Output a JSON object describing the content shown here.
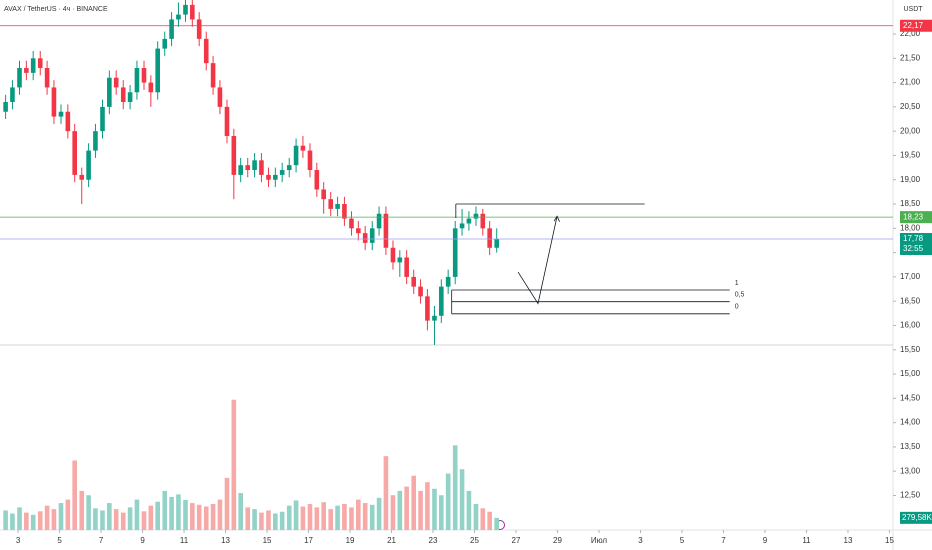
{
  "chart_data": {
    "type": "candlestick",
    "title": "AVAX / TetherUS · 4ч · BINANCE",
    "currency": "USDT",
    "up_color": "#089981",
    "down_color": "#f23645",
    "volume_up_color": "#92d2c7",
    "volume_down_color": "#f7a9a7",
    "x": [
      2.4,
      2.73,
      3.07,
      3.4,
      3.73,
      4.07,
      4.4,
      4.73,
      5.07,
      5.4,
      5.73,
      6.07,
      6.4,
      6.73,
      7.07,
      7.4,
      7.73,
      8.07,
      8.4,
      8.73,
      9.07,
      9.4,
      9.73,
      10.07,
      10.4,
      10.73,
      11.07,
      11.4,
      11.73,
      12.07,
      12.4,
      12.73,
      13.07,
      13.4,
      13.73,
      14.07,
      14.4,
      14.73,
      15.07,
      15.4,
      15.73,
      16.07,
      16.4,
      16.73,
      17.07,
      17.4,
      17.73,
      18.07,
      18.4,
      18.73,
      19.07,
      19.4,
      19.73,
      20.07,
      20.4,
      20.73,
      21.07,
      21.4,
      21.73,
      22.07,
      22.4,
      22.73,
      23.07,
      23.4,
      23.73,
      24.07,
      24.4,
      24.73,
      25.07,
      25.4,
      25.73,
      26.07
    ],
    "open": [
      20.4,
      20.6,
      20.9,
      21.3,
      21.2,
      21.5,
      21.3,
      20.9,
      20.3,
      20.4,
      20.0,
      19.1,
      19.0,
      19.6,
      20.0,
      20.5,
      21.1,
      20.9,
      20.6,
      20.8,
      21.3,
      21.0,
      20.8,
      21.7,
      21.9,
      22.3,
      22.4,
      22.6,
      22.3,
      21.9,
      21.4,
      20.9,
      20.5,
      19.9,
      19.1,
      19.3,
      19.2,
      19.4,
      19.1,
      19.0,
      19.1,
      19.2,
      19.3,
      19.7,
      19.6,
      19.2,
      18.8,
      18.6,
      18.4,
      18.5,
      18.2,
      18.0,
      17.9,
      17.7,
      18.0,
      18.3,
      17.6,
      17.3,
      17.4,
      17.0,
      16.8,
      16.6,
      16.1,
      16.2,
      16.8,
      17.0,
      18.0,
      18.1,
      18.2,
      18.3,
      18.0,
      17.6
    ],
    "high": [
      20.75,
      21.05,
      21.45,
      21.45,
      21.65,
      21.65,
      21.45,
      21.05,
      20.55,
      20.55,
      20.15,
      19.25,
      19.75,
      20.15,
      20.65,
      21.25,
      21.25,
      21.05,
      20.95,
      21.45,
      21.45,
      21.15,
      21.85,
      22.05,
      22.45,
      22.65,
      22.7,
      22.7,
      22.45,
      22.05,
      21.55,
      21.05,
      20.65,
      20.05,
      19.45,
      19.45,
      19.55,
      19.55,
      19.25,
      19.25,
      19.35,
      19.45,
      19.85,
      19.9,
      19.75,
      19.35,
      18.95,
      18.75,
      18.65,
      18.65,
      18.35,
      18.15,
      18.05,
      18.15,
      18.45,
      18.45,
      17.75,
      17.55,
      17.55,
      17.15,
      16.95,
      16.75,
      16.4,
      16.95,
      17.15,
      18.15,
      18.4,
      18.35,
      18.45,
      18.4,
      18.15,
      18.0
    ],
    "low": [
      20.25,
      20.45,
      20.75,
      21.05,
      21.05,
      21.15,
      20.75,
      20.15,
      20.15,
      19.85,
      18.95,
      18.5,
      18.85,
      19.45,
      19.85,
      20.35,
      20.75,
      20.45,
      20.45,
      20.65,
      20.85,
      20.5,
      20.65,
      21.55,
      21.75,
      22.15,
      22.25,
      22.15,
      21.75,
      21.25,
      20.75,
      20.35,
      19.75,
      18.6,
      18.95,
      19.05,
      19.05,
      18.95,
      18.85,
      18.85,
      18.95,
      19.05,
      19.15,
      19.45,
      19.05,
      18.65,
      18.3,
      18.25,
      18.25,
      18.05,
      17.85,
      17.75,
      17.55,
      17.55,
      17.85,
      17.45,
      17.15,
      17.0,
      16.85,
      16.65,
      16.45,
      15.9,
      15.6,
      16.05,
      16.65,
      16.85,
      17.85,
      17.95,
      18.05,
      17.85,
      17.45,
      17.5
    ],
    "close": [
      20.6,
      20.9,
      21.3,
      21.2,
      21.5,
      21.3,
      20.9,
      20.3,
      20.4,
      20.0,
      19.1,
      19.0,
      19.6,
      20.0,
      20.5,
      21.1,
      20.9,
      20.6,
      20.8,
      21.3,
      21.0,
      20.8,
      21.7,
      21.9,
      22.3,
      22.4,
      22.6,
      22.3,
      21.9,
      21.4,
      20.9,
      20.5,
      19.9,
      19.1,
      19.3,
      19.2,
      19.4,
      19.1,
      19.0,
      19.1,
      19.2,
      19.3,
      19.7,
      19.6,
      19.2,
      18.8,
      18.6,
      18.4,
      18.5,
      18.2,
      18.0,
      17.9,
      17.7,
      18.0,
      18.3,
      17.6,
      17.3,
      17.4,
      17.0,
      16.8,
      16.6,
      16.1,
      16.2,
      16.8,
      17.0,
      18.0,
      18.1,
      18.2,
      18.3,
      18.0,
      17.6,
      17.78
    ],
    "volume": [
      450,
      380,
      520,
      400,
      350,
      430,
      560,
      480,
      620,
      700,
      1600,
      900,
      800,
      500,
      450,
      620,
      480,
      400,
      520,
      700,
      430,
      560,
      650,
      900,
      760,
      820,
      690,
      620,
      580,
      540,
      600,
      700,
      1200,
      3000,
      850,
      520,
      480,
      400,
      450,
      380,
      420,
      560,
      680,
      540,
      600,
      520,
      640,
      480,
      560,
      600,
      520,
      700,
      620,
      580,
      740,
      1700,
      800,
      900,
      1000,
      1250,
      900,
      1100,
      950,
      800,
      1300,
      1950,
      1400,
      900,
      600,
      500,
      420,
      279.58
    ],
    "volume_last_label": "279,58K",
    "volume_ylim": [
      0,
      12200
    ],
    "xlim": [
      2.13,
      45.17
    ],
    "xticks": [
      3,
      5,
      7,
      9,
      11,
      13,
      15,
      17,
      19,
      21,
      23,
      25,
      27,
      29,
      {
        "value": 31,
        "label": "Июл"
      },
      {
        "value": 33,
        "label": "3"
      },
      {
        "value": 35,
        "label": "5"
      },
      {
        "value": 37,
        "label": "7"
      },
      {
        "value": 39,
        "label": "9"
      },
      {
        "value": 41,
        "label": "11"
      },
      {
        "value": 43,
        "label": "13"
      },
      {
        "value": 45,
        "label": "15"
      }
    ],
    "ylim": [
      11.79,
      22.7
    ],
    "yticks": [
      {
        "value": 12.5,
        "label": "12,50"
      },
      {
        "value": 13,
        "label": "13,00"
      },
      {
        "value": 13.5,
        "label": "13,50"
      },
      {
        "value": 14,
        "label": "14,00"
      },
      {
        "value": 14.5,
        "label": "14,50"
      },
      {
        "value": 15,
        "label": "15,00"
      },
      {
        "value": 15.5,
        "label": "15,50"
      },
      {
        "value": 16,
        "label": "16,00"
      },
      {
        "value": 16.5,
        "label": "16,50"
      },
      {
        "value": 17,
        "label": "17,00"
      },
      {
        "value": 17.5,
        "label": "17,50"
      },
      {
        "value": 18,
        "label": "18,00"
      },
      {
        "value": 18.5,
        "label": "18,50"
      },
      {
        "value": 19,
        "label": "19,00"
      },
      {
        "value": 19.5,
        "label": "19,50"
      },
      {
        "value": 20,
        "label": "20,00"
      },
      {
        "value": 20.5,
        "label": "20,50"
      },
      {
        "value": 21,
        "label": "21,00"
      },
      {
        "value": 21.5,
        "label": "21,50"
      },
      {
        "value": 22,
        "label": "22,00"
      }
    ],
    "price_lines": [
      {
        "value": 22.17,
        "label": "22,17",
        "color": "#f23645"
      },
      {
        "value": 18.23,
        "label": "18,23",
        "color": "#4caf50"
      },
      {
        "value": 17.78,
        "label": "17,78",
        "color": "#089981",
        "line_color": "#9c9cf0",
        "countdown": "32:55"
      }
    ],
    "box": {
      "x": [
        24.1,
        33.2
      ],
      "value": 18.5
    },
    "fib": {
      "x": [
        23.9,
        37.3
      ],
      "levels": [
        {
          "value": 16.73,
          "label": "1"
        },
        {
          "value": 16.49,
          "label": "0,5"
        },
        {
          "value": 16.24,
          "label": "0"
        }
      ]
    },
    "arrow": {
      "x": [
        27.1,
        28.06,
        28.98
      ],
      "values": [
        17.1,
        16.45,
        18.25
      ]
    }
  }
}
